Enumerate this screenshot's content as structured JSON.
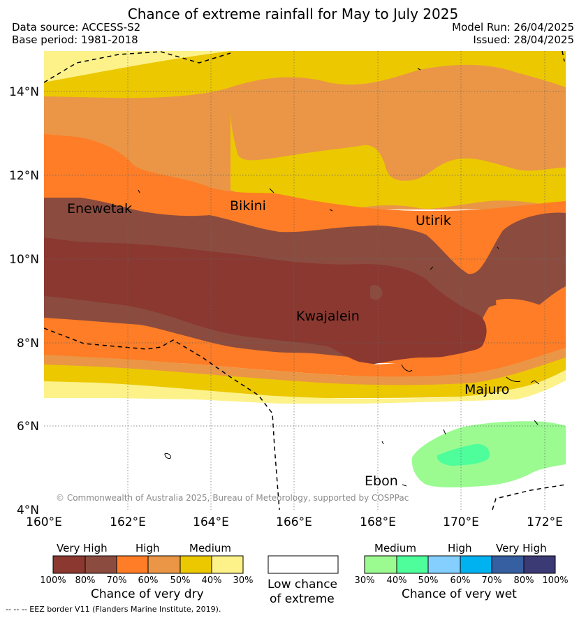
{
  "header": {
    "title": "Chance of extreme rainfall for May to July 2025",
    "data_source": "Data source: ACCESS-S2",
    "base_period": "Base period: 1981-2018",
    "model_run": "Model Run: 26/04/2025",
    "issued": "Issued: 28/04/2025"
  },
  "map": {
    "lat_labels": [
      "14°N",
      "12°N",
      "10°N",
      "8°N",
      "6°N",
      "4°N"
    ],
    "lon_labels": [
      "160°E",
      "162°E",
      "164°E",
      "166°E",
      "168°E",
      "170°E",
      "172°E"
    ],
    "places": {
      "enewetak": "Enewetak",
      "bikini": "Bikini",
      "utirik": "Utirik",
      "kwajalein": "Kwajalein",
      "majuro": "Majuro",
      "ebon": "Ebon"
    },
    "copyright": "© Commonwealth of Australia 2025, Bureau of Meteorology, supported by COSPPac"
  },
  "legend": {
    "dry": {
      "headers": [
        "Very High",
        "High",
        "Medium"
      ],
      "ticks": [
        "100%",
        "80%",
        "70%",
        "60%",
        "50%",
        "40%",
        "30%"
      ],
      "title": "Chance of very dry",
      "colors": [
        "#8a3830",
        "#8b4c3f",
        "#fe7d26",
        "#ea9646",
        "#ecc800",
        "#fdf28a"
      ]
    },
    "low": {
      "title_line1": "Low chance",
      "title_line2": "of extreme"
    },
    "wet": {
      "headers": [
        "Medium",
        "High",
        "Very High"
      ],
      "ticks": [
        "30%",
        "40%",
        "50%",
        "60%",
        "70%",
        "80%",
        "100%"
      ],
      "title": "Chance of very wet",
      "colors": [
        "#9bfb91",
        "#4efe9b",
        "#84cffd",
        "#00b2ef",
        "#355fa0",
        "#3c3a75"
      ]
    }
  },
  "footer": {
    "eez_note": "--  --  -- EEZ border V11 (Flanders Marine Institute, 2019)."
  }
}
